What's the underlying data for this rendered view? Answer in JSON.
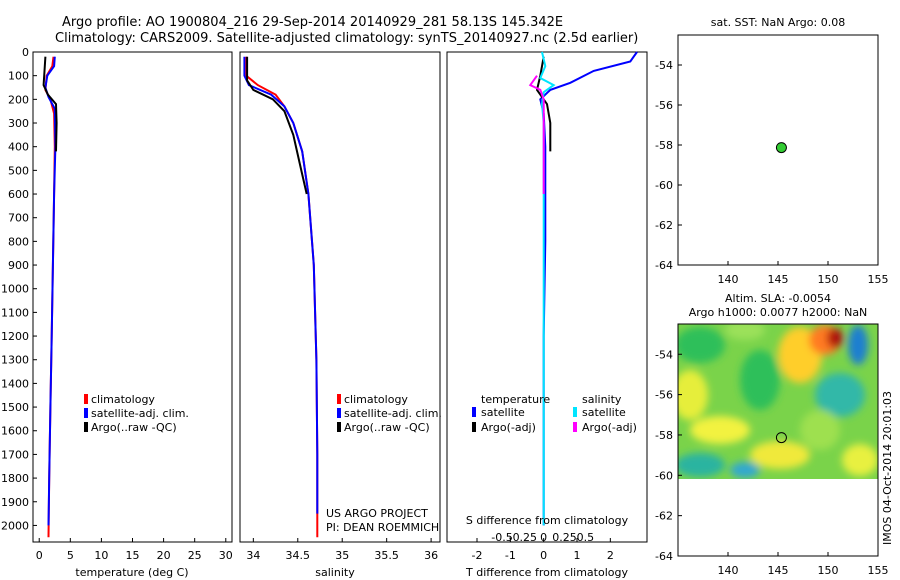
{
  "header": {
    "line1": "Argo profile: AO 1900804_216 29-Sep-2014 20140929_281 58.13S 145.342E",
    "line2": "Climatology: CARS2009. Satellite-adjusted climatology: synTS_20140927.nc (2.5d earlier)"
  },
  "side_text": "IMOS 04-Oct-2014 20:01:03",
  "colors": {
    "climatology": "#ff0000",
    "satellite": "#0000ff",
    "argo": "#000000",
    "sal_satellite": "#00e5ff",
    "sal_argo": "#ff00ff",
    "point_fill": "#33cc33"
  },
  "chart_data": [
    {
      "id": "temperature",
      "type": "line",
      "xlabel": "temperature (deg C)",
      "ylabel": "",
      "xlim": [
        -1,
        31
      ],
      "ylim": [
        2070,
        0
      ],
      "xticks": [
        0,
        5,
        10,
        15,
        20,
        25,
        30
      ],
      "yticks": [
        0,
        100,
        200,
        300,
        400,
        500,
        600,
        700,
        800,
        900,
        1000,
        1100,
        1200,
        1300,
        1400,
        1500,
        1600,
        1700,
        1800,
        1900,
        2000
      ],
      "legend": {
        "placement": "lower-center",
        "entries": [
          "climatology",
          "satellite-adj. clim.",
          "Argo(..raw -QC)"
        ]
      },
      "series": [
        {
          "name": "climatology",
          "color": "#ff0000",
          "width": 2,
          "points": [
            [
              2.3,
              20
            ],
            [
              2.1,
              60
            ],
            [
              1.2,
              100
            ],
            [
              1.0,
              160
            ],
            [
              1.8,
              200
            ],
            [
              2.4,
              260
            ],
            [
              2.5,
              400
            ],
            [
              2.4,
              600
            ],
            [
              2.2,
              900
            ],
            [
              2.0,
              1200
            ],
            [
              1.8,
              1500
            ],
            [
              1.6,
              1800
            ],
            [
              1.5,
              2050
            ]
          ]
        },
        {
          "name": "satellite-adj. clim.",
          "color": "#0000ff",
          "width": 2,
          "points": [
            [
              2.5,
              20
            ],
            [
              2.4,
              60
            ],
            [
              1.3,
              100
            ],
            [
              1.0,
              150
            ],
            [
              1.5,
              190
            ],
            [
              2.5,
              240
            ],
            [
              2.6,
              400
            ],
            [
              2.4,
              600
            ],
            [
              2.2,
              900
            ],
            [
              2.0,
              1200
            ],
            [
              1.8,
              1500
            ],
            [
              1.6,
              1800
            ],
            [
              1.5,
              2000
            ]
          ]
        },
        {
          "name": "Argo(..raw -QC)",
          "color": "#000000",
          "width": 2,
          "points": [
            [
              1.0,
              20
            ],
            [
              0.9,
              60
            ],
            [
              0.8,
              100
            ],
            [
              0.7,
              140
            ],
            [
              1.4,
              180
            ],
            [
              2.7,
              220
            ],
            [
              2.8,
              300
            ],
            [
              2.7,
              420
            ]
          ]
        }
      ]
    },
    {
      "id": "salinity",
      "type": "line",
      "xlabel": "salinity",
      "ylabel": "",
      "xlim": [
        33.85,
        36.1
      ],
      "ylim": [
        2070,
        0
      ],
      "xticks": [
        34,
        34.5,
        35,
        35.5,
        36
      ],
      "tick_labels": [
        "34",
        "34.5",
        "35",
        "35.5",
        "36"
      ],
      "legend": {
        "placement": "lower-right",
        "entries": [
          "climatology",
          "satellite-adj. clim.",
          "Argo(..raw -QC)"
        ]
      },
      "annotation": [
        "US ARGO PROJECT",
        "PI: DEAN ROEMMICH"
      ],
      "series": [
        {
          "name": "climatology",
          "color": "#ff0000",
          "width": 2,
          "points": [
            [
              33.92,
              20
            ],
            [
              33.92,
              100
            ],
            [
              34.05,
              140
            ],
            [
              34.25,
              180
            ],
            [
              34.35,
              230
            ],
            [
              34.45,
              300
            ],
            [
              34.55,
              420
            ],
            [
              34.62,
              600
            ],
            [
              34.68,
              900
            ],
            [
              34.71,
              1300
            ],
            [
              34.72,
              1700
            ],
            [
              34.72,
              2050
            ]
          ]
        },
        {
          "name": "satellite-adj. clim.",
          "color": "#0000ff",
          "width": 2,
          "points": [
            [
              33.9,
              20
            ],
            [
              33.9,
              100
            ],
            [
              33.95,
              140
            ],
            [
              34.2,
              180
            ],
            [
              34.35,
              230
            ],
            [
              34.45,
              300
            ],
            [
              34.55,
              420
            ],
            [
              34.62,
              600
            ],
            [
              34.68,
              900
            ],
            [
              34.71,
              1300
            ],
            [
              34.72,
              1700
            ],
            [
              34.72,
              1950
            ]
          ]
        },
        {
          "name": "Argo(..raw -QC)",
          "color": "#000000",
          "width": 2,
          "points": [
            [
              33.93,
              20
            ],
            [
              33.93,
              120
            ],
            [
              34.0,
              160
            ],
            [
              34.22,
              200
            ],
            [
              34.35,
              250
            ],
            [
              34.45,
              350
            ],
            [
              34.54,
              500
            ],
            [
              34.6,
              600
            ]
          ]
        }
      ]
    },
    {
      "id": "difference",
      "type": "line",
      "xlabel": "T difference from climatology",
      "top_label": "S difference from climatology",
      "xlim": [
        -2.9,
        3.1
      ],
      "ylim": [
        2070,
        0
      ],
      "xticks": [
        -2,
        -1,
        0,
        1,
        2
      ],
      "tick_labels": [
        "-2",
        "-1",
        "0",
        "1",
        "2"
      ],
      "s_ticks": [
        -0.5,
        -0.25,
        0,
        0.25,
        0.5
      ],
      "s_tick_labels": [
        "-0.5",
        "-0.25",
        "0",
        "0.25",
        "0.5"
      ],
      "legend": {
        "placement": "lower-center",
        "groups": [
          {
            "title": "temperature",
            "entries": [
              "satellite",
              "Argo(-adj)"
            ]
          },
          {
            "title": "salinity",
            "entries": [
              "satellite",
              "Argo(-adj)"
            ]
          }
        ]
      },
      "series": [
        {
          "name": "T satellite",
          "color": "#0000ff",
          "width": 2,
          "points": [
            [
              2.8,
              0
            ],
            [
              2.6,
              40
            ],
            [
              1.5,
              80
            ],
            [
              0.8,
              130
            ],
            [
              0.2,
              160
            ],
            [
              -0.1,
              200
            ],
            [
              0.0,
              260
            ],
            [
              0.05,
              400
            ],
            [
              0.05,
              800
            ],
            [
              0.0,
              1200
            ],
            [
              0.0,
              1600
            ],
            [
              0.0,
              2000
            ]
          ]
        },
        {
          "name": "T Argo(-adj)",
          "color": "#000000",
          "width": 2,
          "points": [
            [
              0.0,
              20
            ],
            [
              -0.1,
              100
            ],
            [
              -0.2,
              160
            ],
            [
              0.1,
              220
            ],
            [
              0.2,
              300
            ],
            [
              0.2,
              420
            ]
          ]
        },
        {
          "name": "S satellite",
          "color": "#00e5ff",
          "width": 2,
          "points": [
            [
              -0.05,
              0
            ],
            [
              0.05,
              60
            ],
            [
              -0.1,
              110
            ],
            [
              0.3,
              140
            ],
            [
              0.0,
              170
            ],
            [
              -0.05,
              220
            ],
            [
              0.0,
              300
            ],
            [
              0.0,
              600
            ],
            [
              0.0,
              1000
            ],
            [
              0.0,
              1500
            ],
            [
              0.0,
              2000
            ]
          ]
        },
        {
          "name": "S Argo(-adj)",
          "color": "#ff00ff",
          "width": 2,
          "points": [
            [
              -0.2,
              100
            ],
            [
              -0.4,
              140
            ],
            [
              -0.1,
              160
            ],
            [
              0.0,
              200
            ],
            [
              0.0,
              300
            ],
            [
              0.0,
              600
            ]
          ]
        }
      ]
    },
    {
      "id": "sst_map",
      "type": "scatter",
      "title": "sat. SST: NaN Argo: 0.08",
      "xlim": [
        135,
        155
      ],
      "ylim": [
        -64,
        -52.5
      ],
      "xticks": [
        140,
        145,
        150,
        155
      ],
      "yticks": [
        -54,
        -56,
        -58,
        -60,
        -62,
        -64
      ],
      "points": [
        {
          "x": 145.342,
          "y": -58.13
        }
      ]
    },
    {
      "id": "sla_map",
      "type": "heatmap",
      "title_line1": "Altim. SLA: -0.0054",
      "title_line2": "Argo h1000: 0.0077 h2000: NaN",
      "xlim": [
        135,
        155
      ],
      "ylim": [
        -64,
        -52.5
      ],
      "xticks": [
        140,
        145,
        150,
        155
      ],
      "yticks": [
        -54,
        -56,
        -58,
        -60,
        -62,
        -64
      ],
      "data_lat_range": [
        -60,
        -52.5
      ],
      "points": [
        {
          "x": 145.342,
          "y": -58.13
        }
      ]
    }
  ]
}
